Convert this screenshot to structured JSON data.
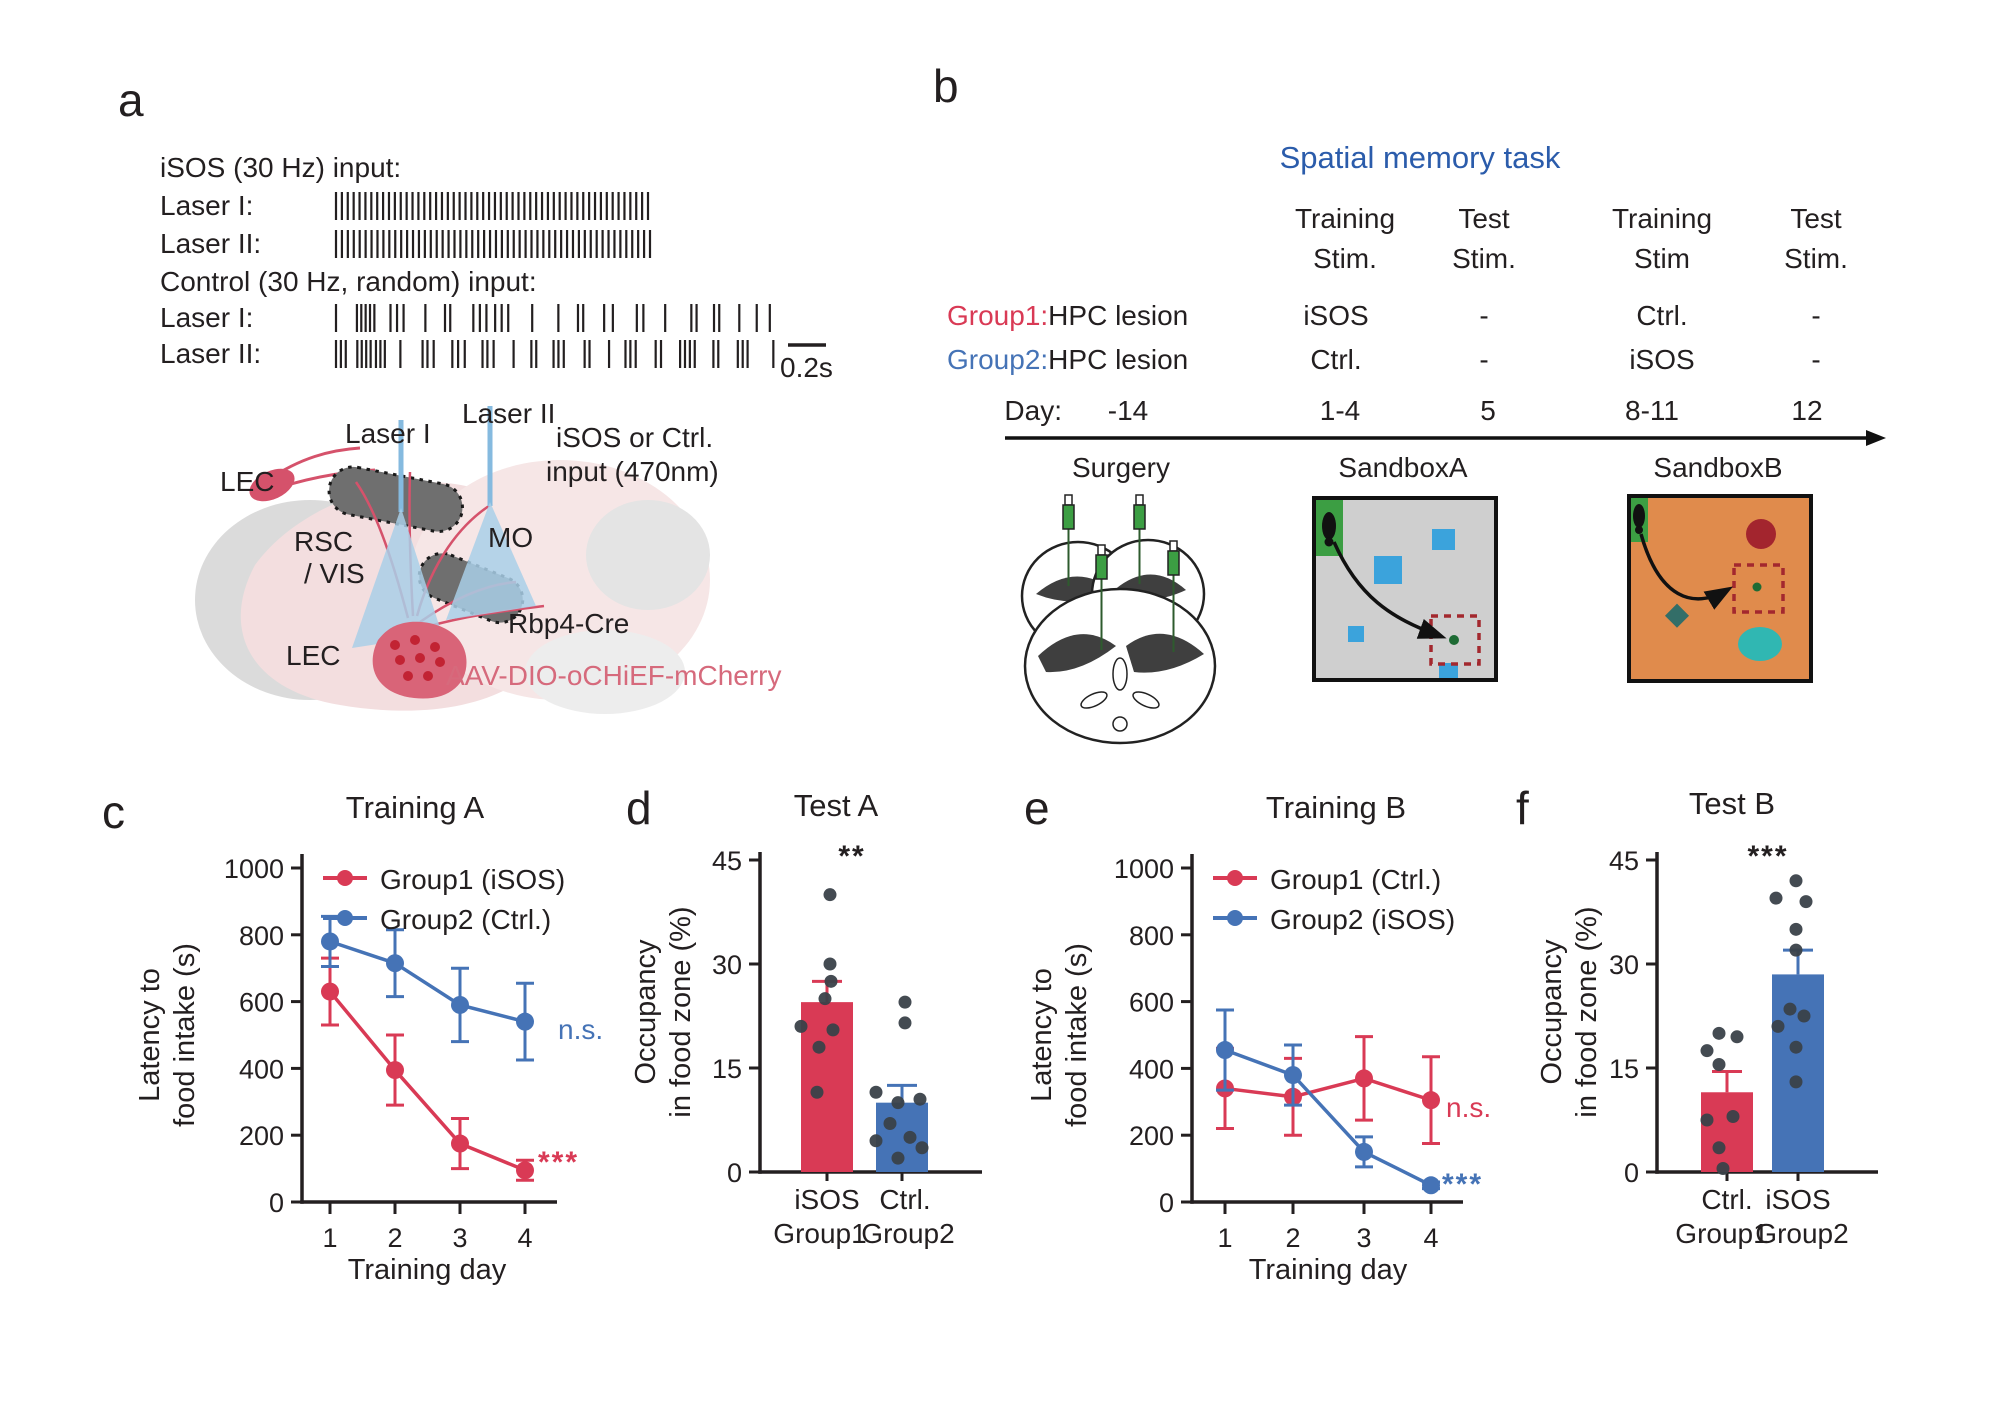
{
  "panel_a": {
    "label": "a",
    "isos_header": "iSOS (30 Hz) input:",
    "laser1_label": "Laser I:",
    "laser2_label": "Laser II:",
    "control_header": "Control (30 Hz, random) input:",
    "control_laser1_label": "Laser I:",
    "control_laser2_label": "Laser II:",
    "scalebar_label": "0.2s",
    "brain": {
      "laser1": "Laser I",
      "laser2": "Laser II",
      "input_line1": "iSOS or Ctrl.",
      "input_line2": "input (470nm)",
      "lec_top": "LEC",
      "rsc": "RSC",
      "vis": "/ VIS",
      "mo": "MO",
      "lec_bottom": "LEC",
      "rbp4": "Rbp4-Cre",
      "aav": "AAV-DIO-oCHiEF-mCherry"
    },
    "colors": {
      "aav_text": "#D66A7C"
    },
    "pulse_trains": {
      "isos_laser1": {
        "type": "regular",
        "count": 54
      },
      "isos_laser2": {
        "type": "regular",
        "count": 54
      },
      "control_laser1": {
        "type": "random",
        "positions": [
          0,
          0.048,
          0.058,
          0.068,
          0.078,
          0.088,
          0.125,
          0.14,
          0.155,
          0.205,
          0.25,
          0.262,
          0.315,
          0.33,
          0.345,
          0.365,
          0.38,
          0.395,
          0.45,
          0.51,
          0.555,
          0.567,
          0.615,
          0.635,
          0.69,
          0.705,
          0.755,
          0.815,
          0.827,
          0.867,
          0.879,
          0.925,
          0.965,
          0.995
        ]
      },
      "control_laser2": {
        "type": "random",
        "positions": [
          0,
          0.011,
          0.022,
          0.048,
          0.058,
          0.068,
          0.078,
          0.09,
          0.1,
          0.11,
          0.145,
          0.195,
          0.206,
          0.22,
          0.262,
          0.275,
          0.29,
          0.33,
          0.341,
          0.355,
          0.4,
          0.44,
          0.451,
          0.49,
          0.501,
          0.513,
          0.56,
          0.571,
          0.615,
          0.652,
          0.663,
          0.675,
          0.72,
          0.732,
          0.775,
          0.786,
          0.797,
          0.808,
          0.85,
          0.861,
          0.905,
          0.916,
          0.927,
          0.985
        ]
      }
    }
  },
  "panel_b": {
    "label": "b",
    "title": "Spatial memory task",
    "col_headers": [
      [
        "Training",
        "Stim."
      ],
      [
        "Test",
        "Stim."
      ],
      [
        "Training",
        "Stim"
      ],
      [
        "Test",
        "Stim."
      ]
    ],
    "rows": [
      {
        "group": "Group1:",
        "lesion": "HPC lesion",
        "values": [
          "iSOS",
          "-",
          "Ctrl.",
          "-"
        ]
      },
      {
        "group": "Group2:",
        "lesion": "HPC lesion",
        "values": [
          "Ctrl.",
          "-",
          "iSOS",
          "-"
        ]
      }
    ],
    "day_label": "Day:",
    "days": [
      "-14",
      "1-4",
      "5",
      "8-11",
      "12"
    ],
    "stages": [
      "Surgery",
      "SandboxA",
      "SandboxB"
    ],
    "colors": {
      "group1": "#D93A55",
      "group2": "#4573B6",
      "title": "#2B5CAB"
    }
  },
  "chart_data": [
    {
      "panel_label": "c",
      "type": "line",
      "title": "Training A",
      "xlabel": "Training day",
      "ylabel": "Latency to food intake (s)",
      "ylabel_lines": [
        "Latency to",
        "food intake (s)"
      ],
      "x": [
        1,
        2,
        3,
        4
      ],
      "ylim": [
        0,
        1000
      ],
      "yticks": [
        0,
        200,
        400,
        600,
        800,
        1000
      ],
      "legend_position": "top-right",
      "series": [
        {
          "name": "Group1 (iSOS)",
          "color": "#D93A55",
          "values": [
            630,
            395,
            175,
            95
          ],
          "err": [
            100,
            105,
            75,
            30
          ],
          "annotation": "***"
        },
        {
          "name": "Group2 (Ctrl.)",
          "color": "#4573B6",
          "values": [
            780,
            715,
            590,
            540
          ],
          "err": [
            75,
            100,
            110,
            115
          ],
          "annotation": "n.s."
        }
      ]
    },
    {
      "panel_label": "d",
      "type": "bar",
      "title": "Test A",
      "ylabel": "Occupancy in food zone (%)",
      "ylabel_lines": [
        "Occupancy",
        "in food zone (%)"
      ],
      "ylim": [
        0,
        45
      ],
      "yticks": [
        0,
        15,
        30,
        45
      ],
      "significance": "**",
      "bars": [
        {
          "label": "iSOS",
          "sublabel": "Group1",
          "color": "#D93A55",
          "value": 24.5,
          "err": 3,
          "dots": [
            [
              40,
              3
            ],
            [
              30,
              3
            ],
            [
              27.5,
              4
            ],
            [
              25,
              -2
            ],
            [
              21,
              -26
            ],
            [
              20.5,
              6
            ],
            [
              18,
              -8
            ],
            [
              11.5,
              -10
            ]
          ]
        },
        {
          "label": "Ctrl.",
          "sublabel": "Group2",
          "color": "#4573B6",
          "value": 10,
          "err": 2.5,
          "dots": [
            [
              24.5,
              3
            ],
            [
              21.5,
              3
            ],
            [
              11.5,
              -26
            ],
            [
              10.5,
              18
            ],
            [
              10,
              -4
            ],
            [
              7,
              -12
            ],
            [
              5,
              8
            ],
            [
              4.5,
              -26
            ],
            [
              3.5,
              20
            ],
            [
              2,
              -4
            ]
          ]
        }
      ]
    },
    {
      "panel_label": "e",
      "type": "line",
      "title": "Training B",
      "xlabel": "Training day",
      "ylabel": "Latency to food intake (s)",
      "ylabel_lines": [
        "Latency to",
        "food intake (s)"
      ],
      "x": [
        1,
        2,
        3,
        4
      ],
      "ylim": [
        0,
        1000
      ],
      "yticks": [
        0,
        200,
        400,
        600,
        800,
        1000
      ],
      "legend_position": "top-right",
      "series": [
        {
          "name": "Group1 (Ctrl.)",
          "color": "#D93A55",
          "values": [
            340,
            315,
            370,
            305
          ],
          "err": [
            120,
            115,
            125,
            130
          ],
          "annotation": "n.s."
        },
        {
          "name": "Group2 (iSOS)",
          "color": "#4573B6",
          "values": [
            455,
            380,
            150,
            50
          ],
          "err": [
            120,
            90,
            45,
            10
          ],
          "annotation": "***"
        }
      ]
    },
    {
      "panel_label": "f",
      "type": "bar",
      "title": "Test B",
      "ylabel": "Occupancy in food zone (%)",
      "ylabel_lines": [
        "Occupancy",
        "in food zone (%)"
      ],
      "ylim": [
        0,
        45
      ],
      "yticks": [
        0,
        15,
        30,
        45
      ],
      "significance": "***",
      "bars": [
        {
          "label": "Ctrl.",
          "sublabel": "Group1",
          "color": "#D93A55",
          "value": 11.5,
          "err": 3,
          "dots": [
            [
              20,
              -8
            ],
            [
              19.5,
              10
            ],
            [
              17.5,
              -20
            ],
            [
              15.5,
              -8
            ],
            [
              8,
              6
            ],
            [
              7.5,
              -20
            ],
            [
              3.5,
              -8
            ],
            [
              0.5,
              -4
            ]
          ]
        },
        {
          "label": "iSOS",
          "sublabel": "Group2",
          "color": "#4573B6",
          "value": 28.5,
          "err": 3.5,
          "dots": [
            [
              42,
              -2
            ],
            [
              39.5,
              -22
            ],
            [
              39,
              8
            ],
            [
              35,
              -2
            ],
            [
              32,
              -2
            ],
            [
              23.5,
              -8
            ],
            [
              22.5,
              6
            ],
            [
              21,
              -20
            ],
            [
              18,
              -2
            ],
            [
              13,
              -2
            ]
          ]
        }
      ]
    }
  ]
}
